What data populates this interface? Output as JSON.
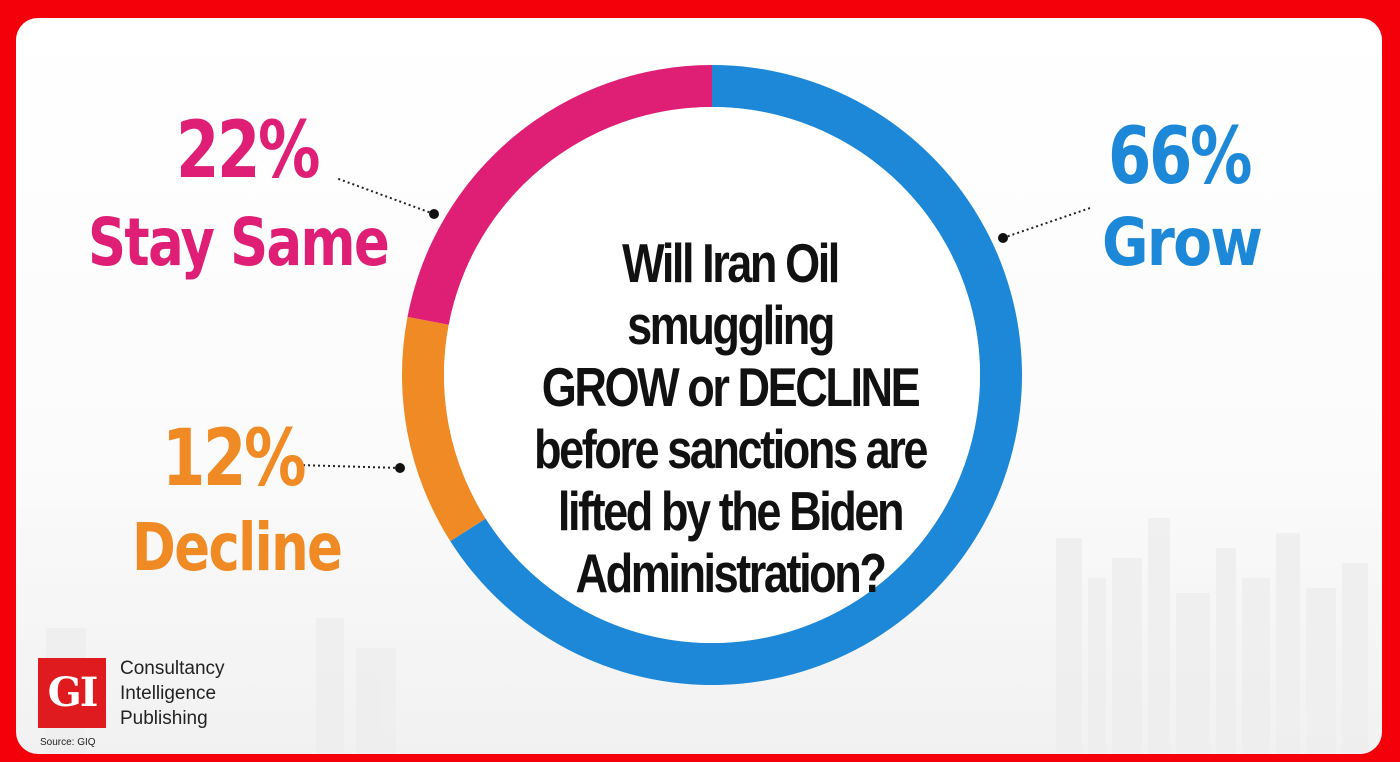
{
  "chart_data": {
    "type": "pie",
    "title": "Will Iran Oil smuggling GROW or DECLINE before sanctions are lifted by the Biden Administration?",
    "title_lines": [
      "Will Iran Oil smuggling",
      "GROW or DECLINE",
      "before sanctions are",
      "lifted by the Biden",
      "Administration?"
    ],
    "slices": [
      {
        "label": "Grow",
        "value": 66,
        "value_label": "66%",
        "color": "#1e88d8"
      },
      {
        "label": "Decline",
        "value": 12,
        "value_label": "12%",
        "color": "#f08a24"
      },
      {
        "label": "Stay Same",
        "value": 22,
        "value_label": "22%",
        "color": "#df1f76"
      }
    ],
    "donut": true,
    "start": "top, clockwise"
  },
  "branding": {
    "logo_text": "GI",
    "lines": [
      "Consultancy",
      "Intelligence",
      "Publishing"
    ],
    "source": "Source: GIQ",
    "logo_color": "#e01b1f"
  },
  "frame_color": "#f4000a"
}
